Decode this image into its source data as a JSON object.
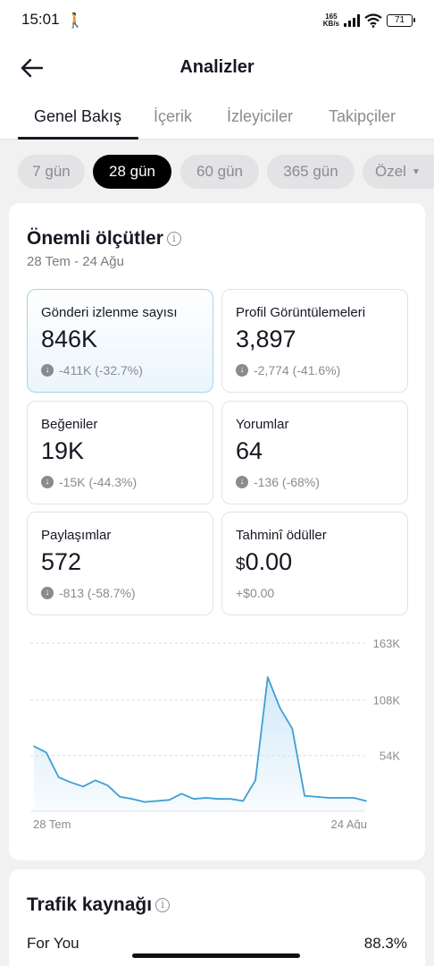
{
  "status_bar": {
    "time": "15:01",
    "network_speed_top": "165",
    "network_speed_bottom": "KB/s",
    "battery": "71"
  },
  "header": {
    "title": "Analizler"
  },
  "tabs": [
    {
      "label": "Genel Bakış",
      "active": true
    },
    {
      "label": "İçerik",
      "active": false
    },
    {
      "label": "İzleyiciler",
      "active": false
    },
    {
      "label": "Takipçiler",
      "active": false
    }
  ],
  "periods": [
    {
      "label": "7 gün",
      "active": false
    },
    {
      "label": "28 gün",
      "active": true
    },
    {
      "label": "60 gün",
      "active": false
    },
    {
      "label": "365 gün",
      "active": false
    },
    {
      "label": "Özel",
      "active": false
    }
  ],
  "key_metrics": {
    "title": "Önemli ölçütler",
    "info_icon": "i",
    "date_range": "28 Tem - 24 Ağu",
    "items": [
      {
        "label": "Gönderi izlenme sayısı",
        "value": "846K",
        "change": "-411K (-32.7%)",
        "selected": true
      },
      {
        "label": "Profil Görüntülemeleri",
        "value": "3,897",
        "change": "-2,774 (-41.6%)"
      },
      {
        "label": "Beğeniler",
        "value": "19K",
        "change": "-15K (-44.3%)"
      },
      {
        "label": "Yorumlar",
        "value": "64",
        "change": "-136 (-68%)"
      },
      {
        "label": "Paylaşımlar",
        "value": "572",
        "change": "-813 (-58.7%)"
      },
      {
        "label": "Tahminî ödüller",
        "currency": "$",
        "value": "0.00",
        "change": "+$0.00"
      }
    ]
  },
  "chart_data": {
    "type": "area",
    "x": [
      "28 Tem",
      "29 Tem",
      "30 Tem",
      "31 Tem",
      "1 Ağu",
      "2 Ağu",
      "3 Ağu",
      "4 Ağu",
      "5 Ağu",
      "6 Ağu",
      "7 Ağu",
      "8 Ağu",
      "9 Ağu",
      "10 Ağu",
      "11 Ağu",
      "12 Ağu",
      "13 Ağu",
      "14 Ağu",
      "15 Ağu",
      "16 Ağu",
      "17 Ağu",
      "18 Ağu",
      "19 Ağu",
      "20 Ağu",
      "21 Ağu",
      "22 Ağu",
      "23 Ağu",
      "24 Ağu"
    ],
    "values": [
      63000,
      57000,
      33000,
      28000,
      24000,
      30000,
      25000,
      14000,
      12000,
      9000,
      10000,
      11000,
      17000,
      12000,
      13000,
      12000,
      12000,
      10000,
      30000,
      130000,
      100000,
      80000,
      15000,
      14000,
      13000,
      13000,
      13000,
      10000
    ],
    "x_tick_labels": [
      "28 Tem",
      "24 Ağu"
    ],
    "y_ticks": [
      54000,
      108000,
      163000
    ],
    "y_tick_labels": [
      "54K",
      "108K",
      "163K"
    ],
    "ylim": [
      0,
      163000
    ],
    "grid": "dashed horizontal",
    "line_color": "#3d9fd3",
    "fill_color": "#cfe8f7"
  },
  "traffic": {
    "title": "Trafik kaynağı",
    "first_source": "For You",
    "first_value": "88.3%"
  }
}
